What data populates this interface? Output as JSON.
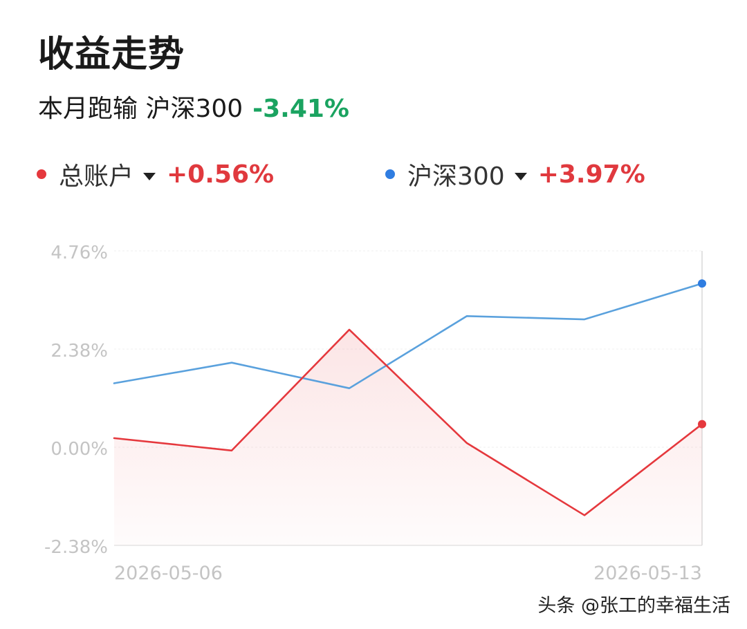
{
  "header": {
    "title": "收益走势",
    "subtitle": "本月跑输 沪深300",
    "diff": "-3.41%"
  },
  "legend": [
    {
      "name": "总账户",
      "value": "+0.56%",
      "color": "#e5383d"
    },
    {
      "name": "沪深300",
      "value": "+3.97%",
      "color": "#2f7de1"
    }
  ],
  "watermark": "头条 @张工的幸福生活",
  "chart_data": {
    "type": "line",
    "x": [
      "2026-05-06",
      "2026-05-07",
      "2026-05-08",
      "2026-05-11",
      "2026-05-12",
      "2026-05-13"
    ],
    "x_tick_labels": [
      "2026-05-06",
      "2026-05-13"
    ],
    "y_ticks": [
      4.76,
      2.38,
      0.0,
      -2.38
    ],
    "y_tick_labels": [
      "4.76%",
      "2.38%",
      "0.00%",
      "-2.38%"
    ],
    "ylim": [
      -2.38,
      4.76
    ],
    "grid": true,
    "legend_position": "top",
    "series": [
      {
        "name": "总账户",
        "color": "#e5383d",
        "values": [
          0.22,
          -0.08,
          2.85,
          0.1,
          -1.65,
          0.56
        ]
      },
      {
        "name": "沪深300",
        "color": "#5aa1dd",
        "values": [
          1.55,
          2.05,
          1.43,
          3.18,
          3.1,
          3.97
        ]
      }
    ]
  }
}
